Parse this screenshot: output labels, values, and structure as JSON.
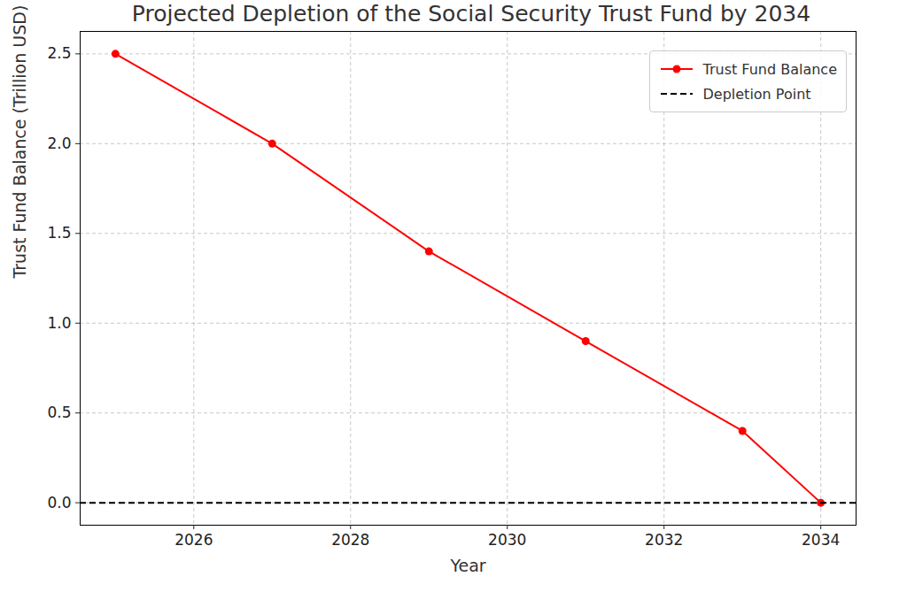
{
  "chart_data": {
    "type": "line",
    "title": "Projected Depletion of the Social Security Trust Fund by 2034",
    "x_label": "Year",
    "y_label": "Trust Fund Balance (Trillion USD)",
    "x": [
      2025,
      2027,
      2029,
      2031,
      2033,
      2034
    ],
    "series": [
      {
        "name": "Trust Fund Balance",
        "color": "#ff0000",
        "marker": "circle",
        "line_style": "solid",
        "values": [
          2.5,
          2.0,
          1.4,
          0.9,
          0.4,
          0.0
        ]
      },
      {
        "name": "Depletion Point",
        "type": "hline",
        "color": "#000000",
        "line_style": "dashed",
        "y": 0
      }
    ],
    "xlim": [
      2024.55,
      2034.45
    ],
    "ylim": [
      -0.125,
      2.625
    ],
    "xticks": [
      2026,
      2028,
      2030,
      2032,
      2034
    ],
    "yticks": [
      {
        "value": 0,
        "label": "0.0"
      },
      0.5,
      {
        "value": 1,
        "label": "1.0"
      },
      1.5,
      {
        "value": 2,
        "label": "2.0"
      },
      2.5
    ],
    "grid": true,
    "legend": "upper right"
  }
}
